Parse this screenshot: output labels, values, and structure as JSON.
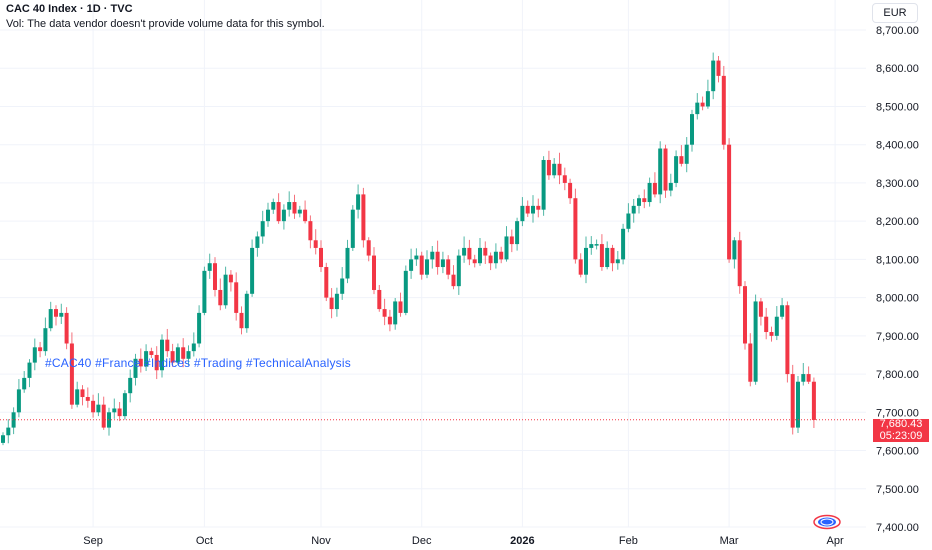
{
  "header": {
    "title": "CAC 40 Index · 1D · TVC",
    "volume_note": "Vol: The data vendor doesn't provide volume data for this symbol."
  },
  "annotation": "#CAC40 #France #Indices #Trading #TechnicalAnalysis",
  "currency": "EUR",
  "current_price": {
    "value": "7,680.43",
    "countdown": "05:23:09",
    "price": 7680.43
  },
  "colors": {
    "up": "#089981",
    "down": "#f23645",
    "tags": "#2962ff"
  },
  "chart_data": {
    "type": "candlestick",
    "title": "CAC 40 Index · 1D · TVC",
    "ylim": [
      7400,
      8700
    ],
    "y_ticks": [
      {
        "v": 8700,
        "label": "8,700.00"
      },
      {
        "v": 8600,
        "label": "8,600.00"
      },
      {
        "v": 8500,
        "label": "8,500.00"
      },
      {
        "v": 8400,
        "label": "8,400.00"
      },
      {
        "v": 8300,
        "label": "8,300.00"
      },
      {
        "v": 8200,
        "label": "8,200.00"
      },
      {
        "v": 8100,
        "label": "8,100.00"
      },
      {
        "v": 8000,
        "label": "8,000.00"
      },
      {
        "v": 7900,
        "label": "7,900.00"
      },
      {
        "v": 7800,
        "label": "7,800.00"
      },
      {
        "v": 7700,
        "label": "7,700.00"
      },
      {
        "v": 7600,
        "label": "7,600.00"
      },
      {
        "v": 7500,
        "label": "7,500.00"
      },
      {
        "v": 7400,
        "label": "7,400.00"
      }
    ],
    "x_ticks": [
      {
        "i": 17,
        "label": "Sep",
        "bold": false
      },
      {
        "i": 38,
        "label": "Oct",
        "bold": false
      },
      {
        "i": 60,
        "label": "Nov",
        "bold": false
      },
      {
        "i": 79,
        "label": "Dec",
        "bold": false
      },
      {
        "i": 98,
        "label": "2026",
        "bold": true
      },
      {
        "i": 118,
        "label": "Feb",
        "bold": false
      },
      {
        "i": 137,
        "label": "Mar",
        "bold": false
      },
      {
        "i": 157,
        "label": "Apr",
        "bold": false
      }
    ],
    "start_open": 7620,
    "closes": [
      7640,
      7660,
      7700,
      7760,
      7790,
      7830,
      7870,
      7860,
      7920,
      7970,
      7950,
      7960,
      7880,
      7720,
      7760,
      7740,
      7730,
      7700,
      7720,
      7660,
      7700,
      7710,
      7690,
      7750,
      7790,
      7840,
      7820,
      7860,
      7850,
      7810,
      7890,
      7860,
      7830,
      7870,
      7840,
      7860,
      7880,
      7960,
      8070,
      8090,
      8020,
      7980,
      8060,
      8040,
      7960,
      7920,
      8010,
      8130,
      8160,
      8200,
      8230,
      8250,
      8200,
      8230,
      8250,
      8220,
      8230,
      8200,
      8150,
      8130,
      8080,
      8000,
      7970,
      8010,
      8050,
      8130,
      8230,
      8270,
      8150,
      8110,
      8020,
      7970,
      7950,
      7930,
      7990,
      7960,
      8070,
      8100,
      8110,
      8060,
      8100,
      8120,
      8080,
      8100,
      8060,
      8030,
      8110,
      8130,
      8100,
      8090,
      8130,
      8110,
      8090,
      8120,
      8100,
      8160,
      8140,
      8200,
      8240,
      8220,
      8240,
      8230,
      8360,
      8320,
      8350,
      8320,
      8300,
      8260,
      8100,
      8060,
      8130,
      8140,
      8140,
      8080,
      8130,
      8090,
      8100,
      8180,
      8220,
      8240,
      8260,
      8250,
      8300,
      8270,
      8390,
      8280,
      8300,
      8370,
      8350,
      8400,
      8480,
      8510,
      8500,
      8540,
      8620,
      8580,
      8400,
      8100,
      8150,
      8030,
      7880,
      7780,
      7990,
      7950,
      7910,
      7900,
      7950,
      7980,
      7800,
      7660,
      7780,
      7800,
      7780,
      7680
    ]
  }
}
